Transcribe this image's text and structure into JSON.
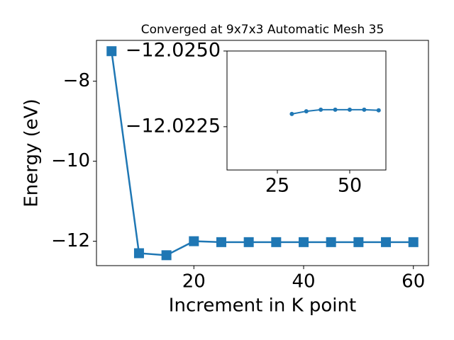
{
  "chart_data": [
    {
      "type": "line",
      "title": "Converged at 9x7x3 Automatic Mesh 35",
      "x_label": "Increment in K point",
      "y_label": "Energy (eV)",
      "x": [
        5,
        10,
        15,
        20,
        25,
        30,
        35,
        40,
        45,
        50,
        55,
        60
      ],
      "series": [
        {
          "color": "#1f77b4",
          "marker": "square",
          "values": [
            -7.25,
            -12.3,
            -12.35,
            -12.0,
            -12.023,
            -12.023,
            -12.023,
            -12.023,
            -12.023,
            -12.023,
            -12.023,
            -12.023
          ]
        }
      ],
      "xlim": [
        2.25,
        62.75
      ],
      "ylim": [
        -12.61,
        -6.98
      ],
      "xticks": [
        20,
        40,
        60
      ],
      "yticks": [
        {
          "value": -12,
          "label": "−12"
        },
        {
          "value": -10,
          "label": "−10"
        },
        {
          "value": -8,
          "label": "−8"
        }
      ]
    },
    {
      "type": "line",
      "x": [
        30,
        35,
        40,
        45,
        50,
        55,
        60
      ],
      "series": [
        {
          "color": "#1f77b4",
          "marker": "circle",
          "values": [
            -12.02292,
            -12.02301,
            -12.02306,
            -12.02306,
            -12.02306,
            -12.02306,
            -12.02304
          ]
        }
      ],
      "xlim": [
        7.6,
        62.5
      ],
      "ylim": [
        -12.02107,
        -12.025
      ],
      "xticks": [
        25,
        50
      ],
      "yticks": [
        {
          "value": -12.025,
          "label": "−12.0250"
        },
        {
          "value": -12.0225,
          "label": "−12.0225"
        }
      ]
    }
  ]
}
